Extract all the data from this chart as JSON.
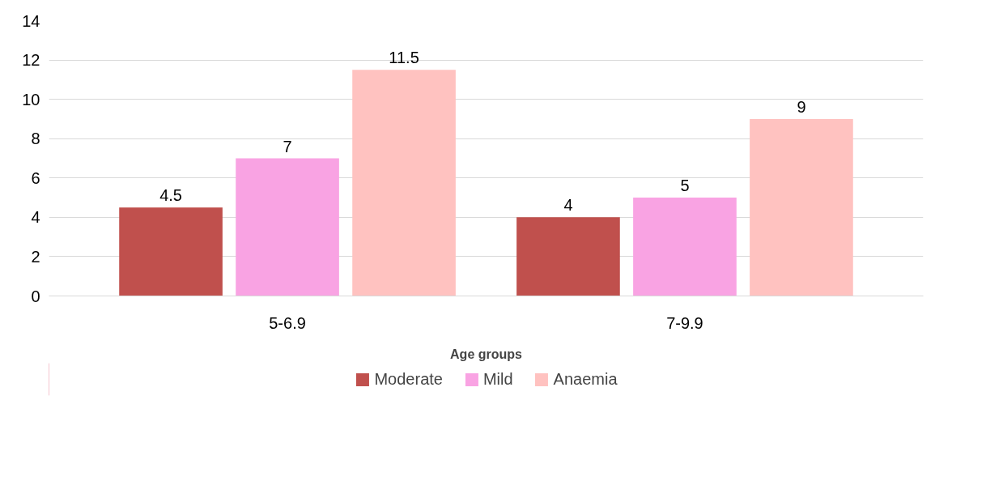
{
  "chart_data": {
    "type": "bar",
    "xlabel": "Age groups",
    "categories": [
      "5-6.9",
      "7-9.9"
    ],
    "series": [
      {
        "name": "Moderate",
        "color": "#c0504d",
        "values": [
          4.5,
          4
        ]
      },
      {
        "name": "Mild",
        "color": "#f9a3e3",
        "values": [
          7,
          5
        ]
      },
      {
        "name": "Anaemia",
        "color": "#ffc2c0",
        "values": [
          11.5,
          9
        ]
      }
    ],
    "ylim": [
      0,
      14
    ],
    "yticks": [
      0,
      2,
      4,
      6,
      8,
      10,
      12,
      14
    ],
    "grid": "y",
    "legend": "bottom",
    "data_labels": true
  }
}
